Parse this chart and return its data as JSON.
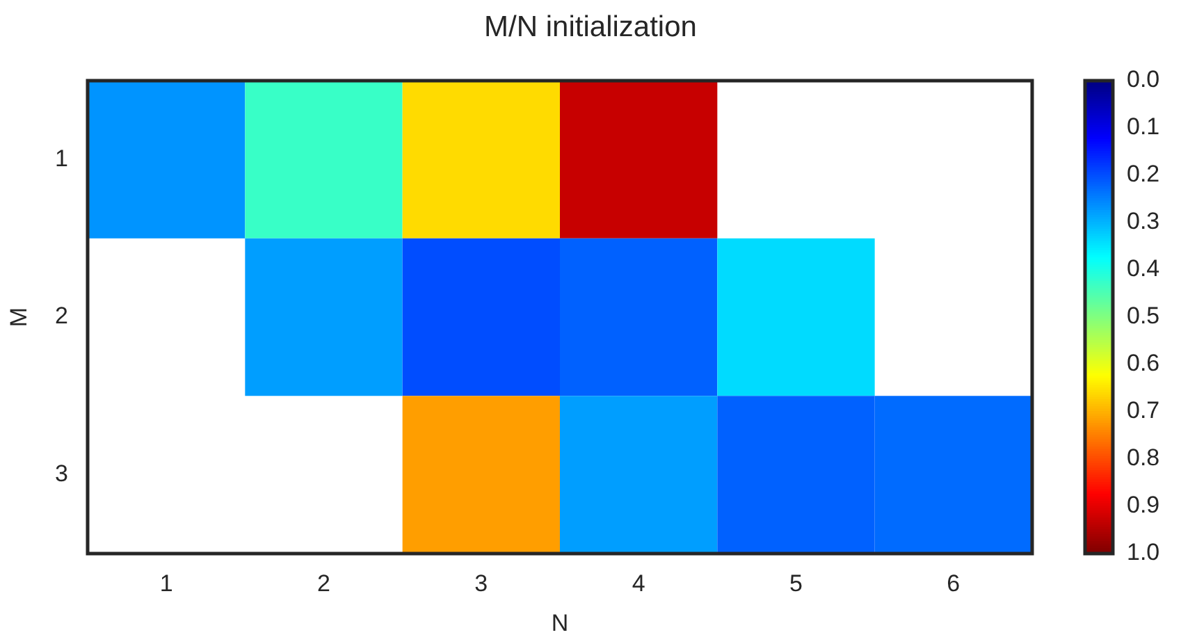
{
  "chart_data": {
    "type": "heatmap",
    "title": "M/N initialization",
    "xlabel": "N",
    "ylabel": "M",
    "categories": [
      "1",
      "2",
      "3",
      "4",
      "5",
      "6"
    ],
    "y_categories": [
      "1",
      "2",
      "3"
    ],
    "cells": [
      [
        0.27,
        0.43,
        0.66,
        0.93,
        null,
        null
      ],
      [
        null,
        0.28,
        0.2,
        0.22,
        0.34,
        null
      ],
      [
        null,
        null,
        0.72,
        0.28,
        0.22,
        0.23
      ]
    ],
    "clim": [
      1,
      0
    ],
    "cticks": [
      {
        "value": 0,
        "label": "0.0"
      },
      0.1,
      0.2,
      0.3,
      0.4,
      0.5,
      0.6,
      0.7,
      0.8,
      0.9,
      {
        "value": 1,
        "label": "1.0"
      }
    ]
  }
}
